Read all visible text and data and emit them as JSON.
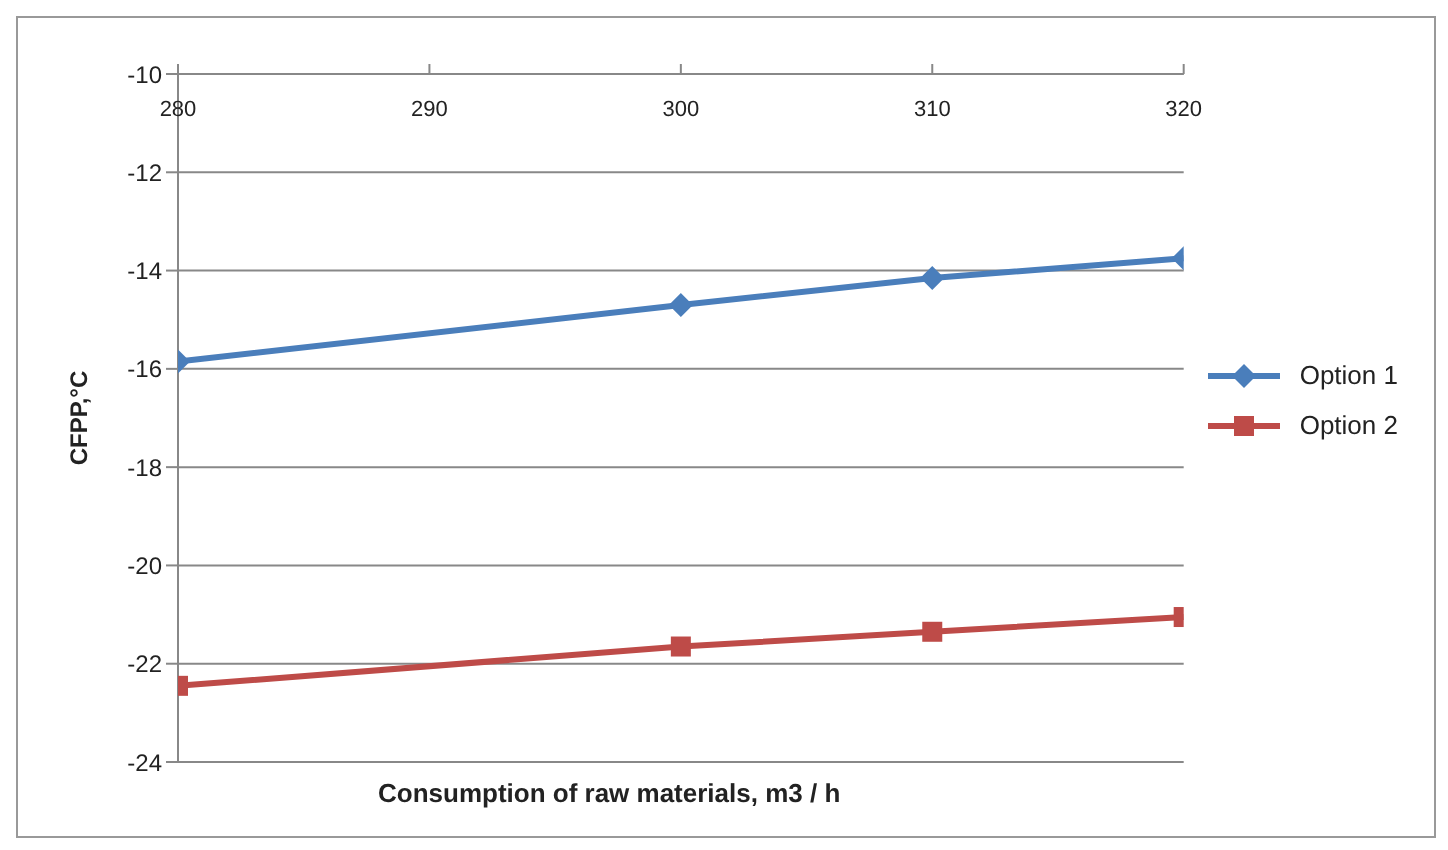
{
  "chart_data": {
    "type": "line",
    "xlabel": "Consumption of raw materials, m3 / h",
    "ylabel": "CFPP,°C",
    "x": [
      280,
      300,
      310,
      320
    ],
    "series": [
      {
        "name": "Option 1",
        "color": "#4a7ebb",
        "values": [
          -15.85,
          -14.7,
          -14.15,
          -13.75
        ],
        "marker": "diamond"
      },
      {
        "name": "Option 2",
        "color": "#be4b48",
        "values": [
          -22.45,
          -21.65,
          -21.35,
          -21.05
        ],
        "marker": "square"
      }
    ],
    "xlim": [
      280,
      320
    ],
    "xticks": [
      280,
      290,
      300,
      310,
      320
    ],
    "ylim": [
      -24,
      -10
    ],
    "yticks": [
      -24,
      -22,
      -20,
      -18,
      -16,
      -14,
      -12,
      -10
    ],
    "grid": "y",
    "legend": "right",
    "line_style": "solid"
  }
}
